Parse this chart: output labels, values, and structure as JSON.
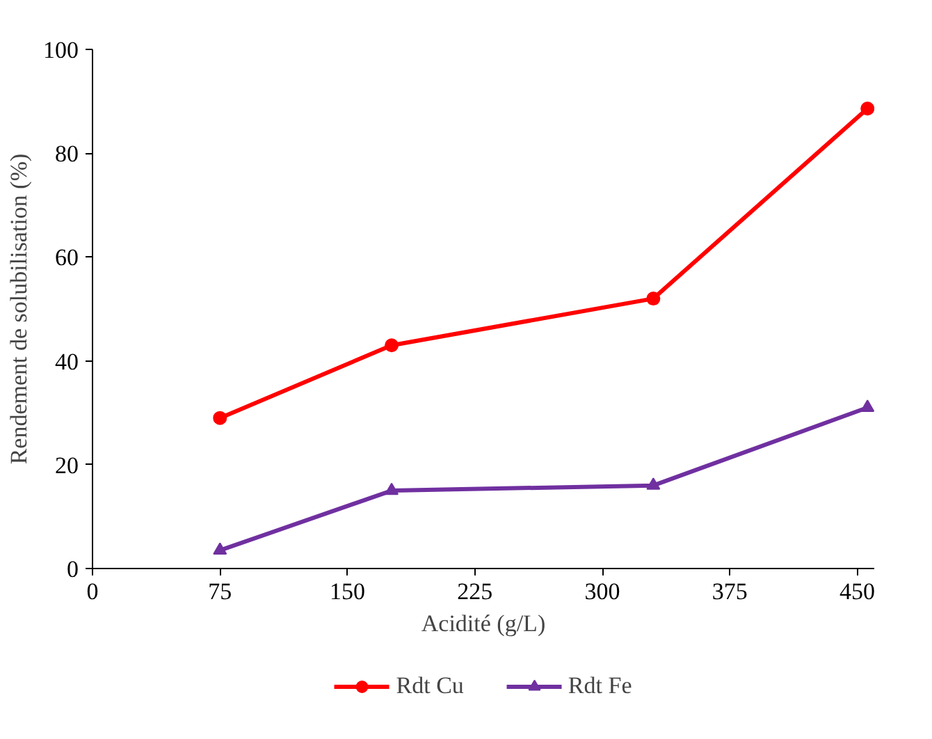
{
  "chart_data": {
    "type": "line",
    "xlabel": "Acidité (g/L)",
    "ylabel": "Rendement de solubilisation (%)",
    "xlim": [
      0,
      460
    ],
    "xticks": [
      0,
      75,
      150,
      225,
      300,
      375,
      450
    ],
    "ylim": [
      0,
      100
    ],
    "yticks": [
      0,
      20,
      40,
      60,
      80,
      100
    ],
    "grid": false,
    "legend": "bottom",
    "line_style": "solid",
    "series": [
      {
        "name": "Rdt Cu",
        "color": "#ff0000",
        "marker": "circle",
        "x": [
          75,
          176,
          330,
          456
        ],
        "values": [
          29,
          43,
          52,
          88.6
        ]
      },
      {
        "name": "Rdt Fe",
        "color": "#7030a0",
        "marker": "triangle",
        "x": [
          75,
          176,
          330,
          456
        ],
        "values": [
          3.5,
          15,
          16,
          31
        ]
      }
    ]
  }
}
